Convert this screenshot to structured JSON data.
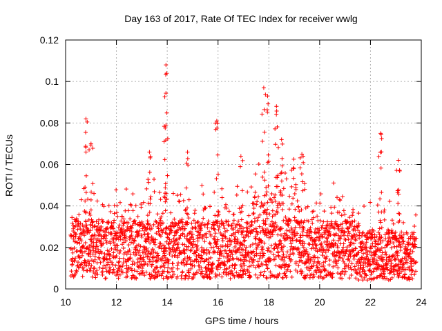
{
  "chart_data": {
    "type": "scatter",
    "title": "Day 163 of 2017, Rate Of TEC Index for receiver wwlg",
    "xlabel": "GPS time / hours",
    "ylabel": "ROTI / TECUs",
    "xlim": [
      10,
      24
    ],
    "ylim": [
      0,
      0.12
    ],
    "x_ticks": [
      "10",
      "12",
      "14",
      "16",
      "18",
      "20",
      "22",
      "24"
    ],
    "y_ticks": [
      "0",
      "0.02",
      "0.04",
      "0.06",
      "0.08",
      "0.1",
      "0.12"
    ],
    "grid": true,
    "series": [
      {
        "name": "ROTI",
        "color": "#ff0000",
        "marker": "plus",
        "x_range": [
          10.2,
          23.8
        ],
        "notable_points": [
          {
            "x": 10.8,
            "y": 0.082
          },
          {
            "x": 11.0,
            "y": 0.07
          },
          {
            "x": 13.3,
            "y": 0.066
          },
          {
            "x": 13.95,
            "y": 0.108
          },
          {
            "x": 13.95,
            "y": 0.079
          },
          {
            "x": 14.8,
            "y": 0.066
          },
          {
            "x": 15.95,
            "y": 0.081
          },
          {
            "x": 16.9,
            "y": 0.064
          },
          {
            "x": 17.8,
            "y": 0.097
          },
          {
            "x": 17.95,
            "y": 0.093
          },
          {
            "x": 18.3,
            "y": 0.088
          },
          {
            "x": 18.5,
            "y": 0.072
          },
          {
            "x": 19.3,
            "y": 0.065
          },
          {
            "x": 22.4,
            "y": 0.075
          },
          {
            "x": 23.1,
            "y": 0.062
          }
        ]
      }
    ]
  }
}
